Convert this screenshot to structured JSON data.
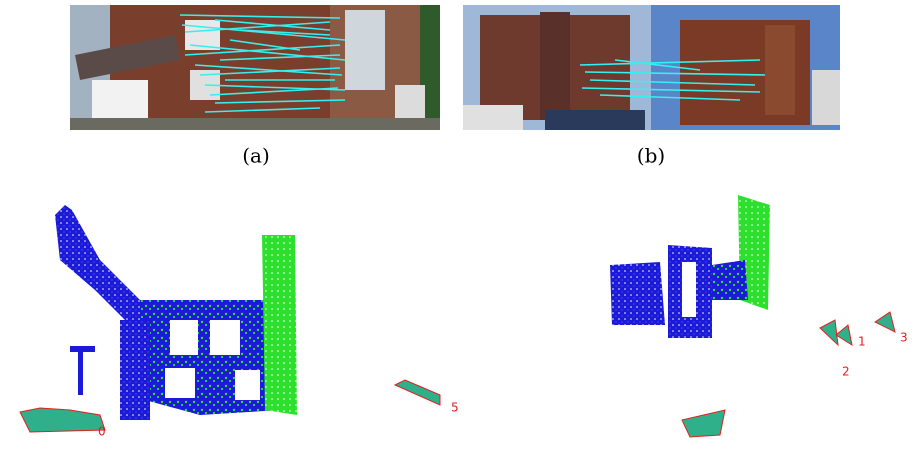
{
  "figure": {
    "panels": [
      {
        "label": "(a)"
      },
      {
        "label": "(b)"
      }
    ],
    "camera_labels": {
      "left": [
        "0",
        "5"
      ],
      "right": [
        "1",
        "2",
        "3"
      ]
    }
  }
}
